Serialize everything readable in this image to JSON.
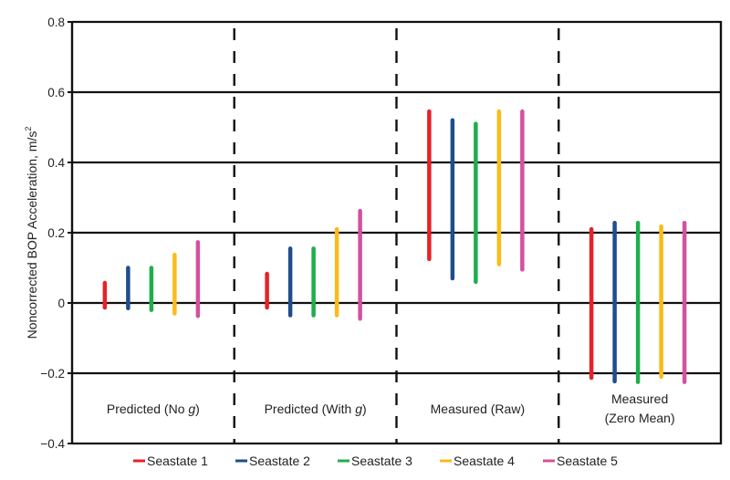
{
  "chart_data": {
    "type": "range-bar",
    "title": "",
    "xlabel": "",
    "ylabel": "Noncorrected BOP Acceleration, m/s",
    "ylabel_superscript": "2",
    "ylim": [
      -0.4,
      0.8
    ],
    "yticks": [
      0.8,
      0.6,
      0.4,
      0.2,
      0,
      -0.2,
      -0.4
    ],
    "ytick_labels": [
      "0.8",
      "0.6",
      "0.4",
      "0.2",
      "0",
      "−0.2",
      "−0.4"
    ],
    "grid": "horizontal",
    "legend_position": "bottom",
    "categories": [
      {
        "label": "Predicted (No ",
        "italic": "g",
        "suffix": ")"
      },
      {
        "label": "Predicted (With ",
        "italic": "g",
        "suffix": ")"
      },
      {
        "label": "Measured (Raw)",
        "italic": "",
        "suffix": ""
      },
      {
        "label": "Measured",
        "line2": "(Zero Mean)",
        "italic": "",
        "suffix": ""
      }
    ],
    "series": [
      {
        "name": "Seastate 1",
        "color": "#e8212a",
        "ranges": [
          [
            -0.013,
            0.057
          ],
          [
            -0.013,
            0.083
          ],
          [
            0.125,
            0.545
          ],
          [
            -0.213,
            0.21
          ]
        ]
      },
      {
        "name": "Seastate 2",
        "color": "#1f4e8c",
        "ranges": [
          [
            -0.015,
            0.1
          ],
          [
            -0.035,
            0.155
          ],
          [
            0.07,
            0.52
          ],
          [
            -0.223,
            0.228
          ]
        ]
      },
      {
        "name": "Seastate 3",
        "color": "#1fae4b",
        "ranges": [
          [
            -0.02,
            0.1
          ],
          [
            -0.035,
            0.155
          ],
          [
            0.06,
            0.51
          ],
          [
            -0.225,
            0.228
          ]
        ]
      },
      {
        "name": "Seastate 4",
        "color": "#fbbb1a",
        "ranges": [
          [
            -0.03,
            0.137
          ],
          [
            -0.035,
            0.21
          ],
          [
            0.11,
            0.545
          ],
          [
            -0.21,
            0.218
          ]
        ]
      },
      {
        "name": "Seastate 5",
        "color": "#d4519e",
        "ranges": [
          [
            -0.037,
            0.173
          ],
          [
            -0.045,
            0.262
          ],
          [
            0.095,
            0.545
          ],
          [
            -0.225,
            0.228
          ]
        ]
      }
    ]
  }
}
